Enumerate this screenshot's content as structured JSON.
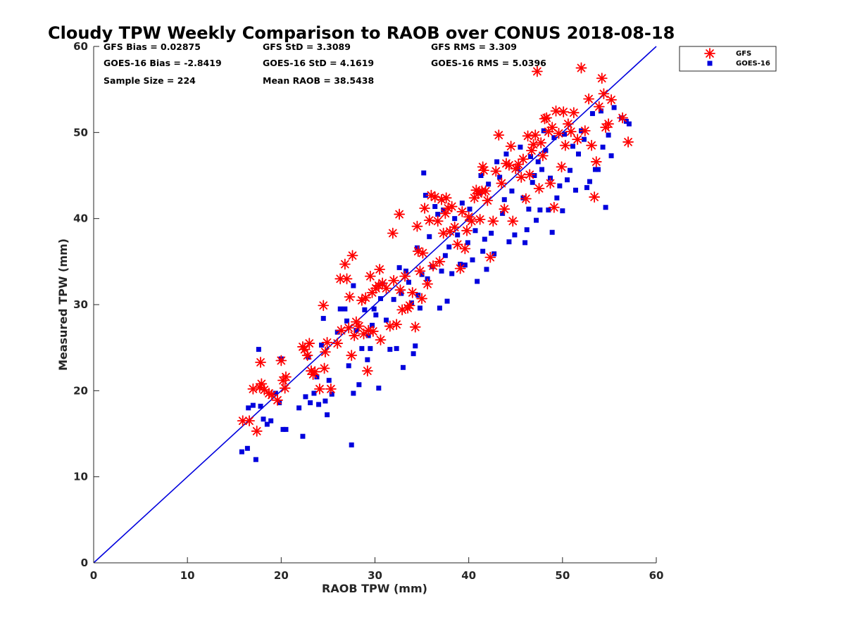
{
  "chart_data": {
    "type": "scatter",
    "title": "Cloudy TPW Weekly Comparison to RAOB over CONUS 2018-08-18",
    "xlabel": "RAOB TPW (mm)",
    "ylabel": "Measured TPW (mm)",
    "xlim": [
      0,
      60
    ],
    "ylim": [
      0,
      60
    ],
    "xticks": [
      0,
      10,
      20,
      30,
      40,
      50,
      60
    ],
    "yticks": [
      0,
      10,
      20,
      30,
      40,
      50,
      60
    ],
    "grid": false,
    "legend_position": "outside top-right",
    "reference_line": {
      "from": [
        0,
        0
      ],
      "to": [
        60,
        60
      ],
      "color": "#0000dd"
    },
    "stats": [
      {
        "id": "gfs-bias",
        "text": "GFS Bias = 0.02875"
      },
      {
        "id": "gfs-std",
        "text": "GFS StD = 3.3089"
      },
      {
        "id": "gfs-rms",
        "text": "GFS RMS = 3.309"
      },
      {
        "id": "goes-bias",
        "text": "GOES-16 Bias = -2.8419"
      },
      {
        "id": "goes-std",
        "text": "GOES-16 StD = 4.1619"
      },
      {
        "id": "goes-rms",
        "text": "GOES-16 RMS = 5.0396"
      },
      {
        "id": "sample-size",
        "text": "Sample Size = 224"
      },
      {
        "id": "mean-raob",
        "text": "Mean RAOB = 38.5438"
      }
    ],
    "series": [
      {
        "name": "GFS",
        "marker": "asterisk",
        "color": "#ff0000",
        "points": [
          [
            15.9,
            16.5
          ],
          [
            16.6,
            16.5
          ],
          [
            17.0,
            20.2
          ],
          [
            17.4,
            15.3
          ],
          [
            17.7,
            20.4
          ],
          [
            17.8,
            23.3
          ],
          [
            17.9,
            20.8
          ],
          [
            18.2,
            20.1
          ],
          [
            18.7,
            19.7
          ],
          [
            19.0,
            19.5
          ],
          [
            19.6,
            18.9
          ],
          [
            20.0,
            23.5
          ],
          [
            20.2,
            21.2
          ],
          [
            20.4,
            20.3
          ],
          [
            20.5,
            21.6
          ],
          [
            22.3,
            25.1
          ],
          [
            22.5,
            24.8
          ],
          [
            22.8,
            24.1
          ],
          [
            23.0,
            25.5
          ],
          [
            23.2,
            22.3
          ],
          [
            23.4,
            21.9
          ],
          [
            23.6,
            22.2
          ],
          [
            24.1,
            20.2
          ],
          [
            24.5,
            29.9
          ],
          [
            24.6,
            22.6
          ],
          [
            24.7,
            24.5
          ],
          [
            24.9,
            25.6
          ],
          [
            25.3,
            20.2
          ],
          [
            26.0,
            25.5
          ],
          [
            26.3,
            33.0
          ],
          [
            26.4,
            27.0
          ],
          [
            26.8,
            34.7
          ],
          [
            27.0,
            33.0
          ],
          [
            27.2,
            27.3
          ],
          [
            27.3,
            30.9
          ],
          [
            27.5,
            24.1
          ],
          [
            27.6,
            35.7
          ],
          [
            27.8,
            26.4
          ],
          [
            28.0,
            28.0
          ],
          [
            28.3,
            27.5
          ],
          [
            28.6,
            30.5
          ],
          [
            28.8,
            26.6
          ],
          [
            29.0,
            30.8
          ],
          [
            29.2,
            22.3
          ],
          [
            29.3,
            27.0
          ],
          [
            29.5,
            33.3
          ],
          [
            29.7,
            31.4
          ],
          [
            29.8,
            26.9
          ],
          [
            30.1,
            31.9
          ],
          [
            30.4,
            32.2
          ],
          [
            30.5,
            34.1
          ],
          [
            30.6,
            25.9
          ],
          [
            30.8,
            32.5
          ],
          [
            31.2,
            31.9
          ],
          [
            31.6,
            27.5
          ],
          [
            31.9,
            38.3
          ],
          [
            32.0,
            32.8
          ],
          [
            32.3,
            27.7
          ],
          [
            32.6,
            40.5
          ],
          [
            32.7,
            31.7
          ],
          [
            32.9,
            29.4
          ],
          [
            33.2,
            33.3
          ],
          [
            33.5,
            29.6
          ],
          [
            33.7,
            29.9
          ],
          [
            34.0,
            31.4
          ],
          [
            34.3,
            27.4
          ],
          [
            34.5,
            39.1
          ],
          [
            34.6,
            36.2
          ],
          [
            34.8,
            33.9
          ],
          [
            35.0,
            30.7
          ],
          [
            35.1,
            36.0
          ],
          [
            35.3,
            41.2
          ],
          [
            35.6,
            32.4
          ],
          [
            35.8,
            39.8
          ],
          [
            36.0,
            42.7
          ],
          [
            36.2,
            34.5
          ],
          [
            36.4,
            42.5
          ],
          [
            36.7,
            39.7
          ],
          [
            36.9,
            35.0
          ],
          [
            37.1,
            42.2
          ],
          [
            37.3,
            38.3
          ],
          [
            37.5,
            40.6
          ],
          [
            37.6,
            42.4
          ],
          [
            37.8,
            41.2
          ],
          [
            38.0,
            38.5
          ],
          [
            38.2,
            41.4
          ],
          [
            38.5,
            39.0
          ],
          [
            38.8,
            37.0
          ],
          [
            39.1,
            34.2
          ],
          [
            39.3,
            40.8
          ],
          [
            39.6,
            36.5
          ],
          [
            39.8,
            38.6
          ],
          [
            40.0,
            40.2
          ],
          [
            40.3,
            39.7
          ],
          [
            40.6,
            42.4
          ],
          [
            40.8,
            43.3
          ],
          [
            41.0,
            42.9
          ],
          [
            41.2,
            39.9
          ],
          [
            41.4,
            43.2
          ],
          [
            41.5,
            46.0
          ],
          [
            41.6,
            45.6
          ],
          [
            41.8,
            43.2
          ],
          [
            42.0,
            42.1
          ],
          [
            42.3,
            35.5
          ],
          [
            42.6,
            39.7
          ],
          [
            42.9,
            45.5
          ],
          [
            43.2,
            49.7
          ],
          [
            43.5,
            44.1
          ],
          [
            43.8,
            41.1
          ],
          [
            44.0,
            46.4
          ],
          [
            44.3,
            46.2
          ],
          [
            44.5,
            48.4
          ],
          [
            44.7,
            39.7
          ],
          [
            45.0,
            45.8
          ],
          [
            45.3,
            46.3
          ],
          [
            45.6,
            44.8
          ],
          [
            45.8,
            46.9
          ],
          [
            46.1,
            42.3
          ],
          [
            46.3,
            49.6
          ],
          [
            46.5,
            45.1
          ],
          [
            46.7,
            47.9
          ],
          [
            46.9,
            48.6
          ],
          [
            47.1,
            49.7
          ],
          [
            47.3,
            57.1
          ],
          [
            47.5,
            43.5
          ],
          [
            47.7,
            48.8
          ],
          [
            47.9,
            47.3
          ],
          [
            48.1,
            51.6
          ],
          [
            48.3,
            51.7
          ],
          [
            48.5,
            50.1
          ],
          [
            48.7,
            44.1
          ],
          [
            48.9,
            50.6
          ],
          [
            49.1,
            41.3
          ],
          [
            49.3,
            52.5
          ],
          [
            49.6,
            49.9
          ],
          [
            49.9,
            46.0
          ],
          [
            50.1,
            52.4
          ],
          [
            50.3,
            48.5
          ],
          [
            50.6,
            51.0
          ],
          [
            50.9,
            50.1
          ],
          [
            51.2,
            52.3
          ],
          [
            51.6,
            49.2
          ],
          [
            52.0,
            57.5
          ],
          [
            52.4,
            50.2
          ],
          [
            52.8,
            53.9
          ],
          [
            53.1,
            48.5
          ],
          [
            53.4,
            42.5
          ],
          [
            53.6,
            46.6
          ],
          [
            53.9,
            53.0
          ],
          [
            54.2,
            56.3
          ],
          [
            54.4,
            54.5
          ],
          [
            54.6,
            50.6
          ],
          [
            54.9,
            51.0
          ],
          [
            55.2,
            53.8
          ],
          [
            56.4,
            51.7
          ],
          [
            57.0,
            48.9
          ]
        ]
      },
      {
        "name": "GOES-16",
        "marker": "square",
        "color": "#0000dd",
        "points": [
          [
            15.8,
            12.9
          ],
          [
            16.4,
            13.3
          ],
          [
            16.5,
            18.0
          ],
          [
            17.0,
            18.3
          ],
          [
            17.3,
            12.0
          ],
          [
            17.6,
            24.8
          ],
          [
            17.8,
            18.2
          ],
          [
            18.1,
            16.7
          ],
          [
            18.5,
            16.1
          ],
          [
            18.9,
            16.5
          ],
          [
            19.4,
            19.7
          ],
          [
            19.8,
            18.6
          ],
          [
            20.0,
            23.7
          ],
          [
            20.2,
            15.5
          ],
          [
            20.5,
            15.5
          ],
          [
            21.9,
            18.0
          ],
          [
            22.3,
            14.7
          ],
          [
            22.6,
            19.3
          ],
          [
            22.9,
            23.9
          ],
          [
            23.1,
            18.6
          ],
          [
            23.5,
            19.7
          ],
          [
            23.8,
            21.6
          ],
          [
            24.0,
            18.4
          ],
          [
            24.3,
            25.3
          ],
          [
            24.5,
            28.4
          ],
          [
            24.7,
            18.8
          ],
          [
            24.9,
            17.2
          ],
          [
            25.1,
            21.2
          ],
          [
            25.4,
            19.6
          ],
          [
            26.0,
            26.8
          ],
          [
            26.3,
            29.5
          ],
          [
            26.8,
            29.5
          ],
          [
            27.0,
            28.1
          ],
          [
            27.2,
            22.9
          ],
          [
            27.5,
            13.7
          ],
          [
            27.7,
            32.2
          ],
          [
            27.7,
            19.7
          ],
          [
            28.0,
            27.0
          ],
          [
            28.3,
            20.7
          ],
          [
            28.6,
            24.9
          ],
          [
            28.9,
            29.4
          ],
          [
            29.2,
            23.6
          ],
          [
            29.3,
            26.4
          ],
          [
            29.5,
            24.9
          ],
          [
            29.7,
            27.6
          ],
          [
            29.9,
            29.5
          ],
          [
            30.1,
            28.8
          ],
          [
            30.4,
            20.3
          ],
          [
            30.6,
            30.7
          ],
          [
            30.8,
            32.4
          ],
          [
            31.2,
            28.2
          ],
          [
            31.6,
            24.8
          ],
          [
            32.0,
            30.6
          ],
          [
            32.3,
            24.9
          ],
          [
            32.6,
            34.3
          ],
          [
            32.8,
            31.3
          ],
          [
            33.0,
            22.7
          ],
          [
            33.3,
            33.9
          ],
          [
            33.6,
            32.6
          ],
          [
            33.9,
            30.2
          ],
          [
            34.1,
            24.3
          ],
          [
            34.3,
            25.2
          ],
          [
            34.5,
            36.6
          ],
          [
            34.6,
            31.1
          ],
          [
            34.8,
            29.6
          ],
          [
            35.0,
            33.5
          ],
          [
            35.2,
            45.3
          ],
          [
            35.4,
            42.7
          ],
          [
            35.6,
            33.0
          ],
          [
            35.8,
            37.9
          ],
          [
            36.1,
            34.4
          ],
          [
            36.4,
            41.4
          ],
          [
            36.7,
            40.5
          ],
          [
            36.9,
            29.6
          ],
          [
            37.1,
            33.9
          ],
          [
            37.3,
            41.0
          ],
          [
            37.5,
            35.7
          ],
          [
            37.7,
            30.4
          ],
          [
            37.9,
            36.7
          ],
          [
            38.2,
            33.6
          ],
          [
            38.5,
            40.0
          ],
          [
            38.8,
            38.1
          ],
          [
            39.1,
            34.7
          ],
          [
            39.3,
            41.8
          ],
          [
            39.6,
            34.6
          ],
          [
            39.9,
            37.2
          ],
          [
            40.1,
            41.1
          ],
          [
            40.4,
            35.2
          ],
          [
            40.7,
            38.6
          ],
          [
            40.9,
            32.7
          ],
          [
            41.1,
            43.0
          ],
          [
            41.3,
            45.0
          ],
          [
            41.5,
            36.2
          ],
          [
            41.7,
            37.6
          ],
          [
            41.9,
            34.1
          ],
          [
            42.1,
            44.0
          ],
          [
            42.4,
            38.3
          ],
          [
            42.7,
            35.9
          ],
          [
            43.0,
            46.6
          ],
          [
            43.3,
            44.8
          ],
          [
            43.6,
            40.6
          ],
          [
            43.8,
            42.2
          ],
          [
            44.0,
            47.5
          ],
          [
            44.3,
            37.3
          ],
          [
            44.6,
            43.2
          ],
          [
            44.9,
            38.1
          ],
          [
            45.2,
            45.8
          ],
          [
            45.5,
            48.3
          ],
          [
            45.8,
            42.4
          ],
          [
            46.0,
            37.2
          ],
          [
            46.2,
            38.7
          ],
          [
            46.4,
            41.1
          ],
          [
            46.6,
            47.2
          ],
          [
            46.8,
            44.2
          ],
          [
            47.0,
            45.0
          ],
          [
            47.2,
            39.8
          ],
          [
            47.4,
            46.6
          ],
          [
            47.6,
            41.0
          ],
          [
            47.8,
            45.7
          ],
          [
            48.0,
            50.2
          ],
          [
            48.2,
            47.9
          ],
          [
            48.5,
            41.0
          ],
          [
            48.7,
            44.7
          ],
          [
            48.9,
            38.4
          ],
          [
            49.1,
            49.4
          ],
          [
            49.4,
            42.4
          ],
          [
            49.7,
            43.8
          ],
          [
            50.0,
            40.9
          ],
          [
            50.2,
            49.8
          ],
          [
            50.5,
            44.5
          ],
          [
            50.8,
            45.6
          ],
          [
            51.1,
            48.4
          ],
          [
            51.4,
            43.3
          ],
          [
            51.7,
            47.5
          ],
          [
            52.0,
            50.2
          ],
          [
            52.3,
            49.2
          ],
          [
            52.6,
            43.6
          ],
          [
            52.9,
            44.3
          ],
          [
            53.2,
            52.2
          ],
          [
            53.5,
            45.7
          ],
          [
            53.8,
            45.7
          ],
          [
            54.1,
            52.5
          ],
          [
            54.3,
            48.3
          ],
          [
            54.6,
            41.3
          ],
          [
            54.9,
            49.7
          ],
          [
            55.2,
            47.3
          ],
          [
            55.5,
            52.9
          ],
          [
            56.3,
            51.7
          ],
          [
            56.8,
            51.3
          ],
          [
            57.1,
            51.0
          ]
        ]
      }
    ]
  }
}
